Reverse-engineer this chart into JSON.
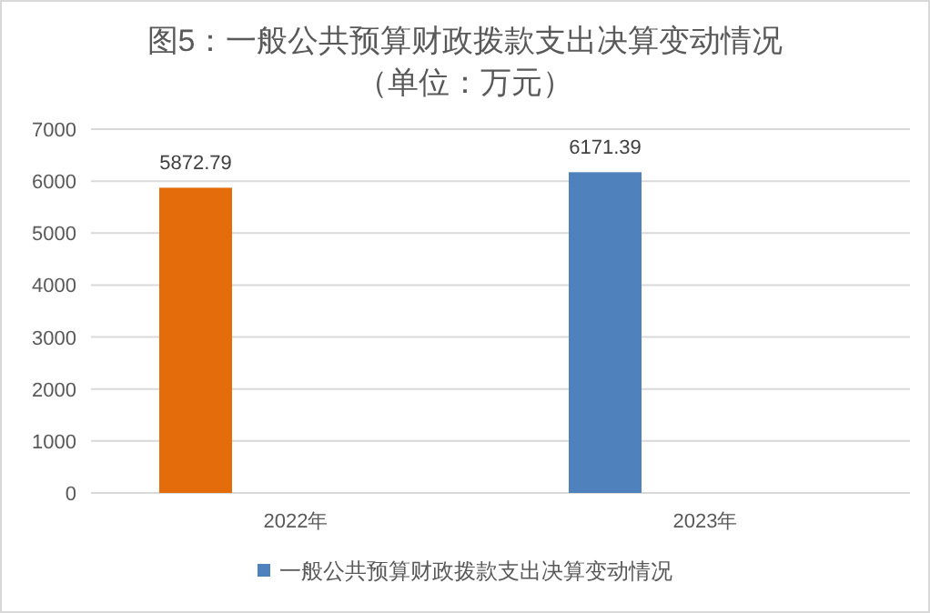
{
  "chart_data": {
    "type": "bar",
    "title": "图5：一般公共预算财政拨款支出决算变动情况",
    "subtitle": "（单位：万元）",
    "categories": [
      "2022年",
      "2023年"
    ],
    "series": [
      {
        "name": "一般公共预算财政拨款支出决算变动情况",
        "color": "#4f81bd",
        "colors": [
          "#e46c0a",
          "#4f81bd"
        ],
        "values": [
          5872.79,
          6171.39
        ]
      }
    ],
    "ylim": [
      0,
      7000
    ],
    "yticks": [
      0,
      1000,
      2000,
      3000,
      4000,
      5000,
      6000,
      7000
    ],
    "grid": "y",
    "data_labels": true,
    "legend": "bottom"
  }
}
